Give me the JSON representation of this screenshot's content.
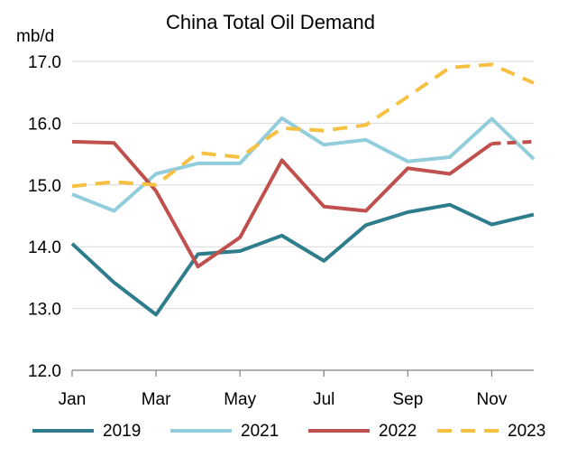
{
  "chart_data": {
    "type": "line",
    "title": "China Total Oil Demand",
    "ylabel": "mb/d",
    "xlabel": "",
    "ylim": [
      12.0,
      17.0
    ],
    "yticks": [
      "12.0",
      "13.0",
      "14.0",
      "15.0",
      "16.0",
      "17.0"
    ],
    "categories": [
      "Jan",
      "Feb",
      "Mar",
      "Apr",
      "May",
      "Jun",
      "Jul",
      "Aug",
      "Sep",
      "Oct",
      "Nov",
      "Dec"
    ],
    "xtick_labels": [
      "Jan",
      "Mar",
      "May",
      "Jul",
      "Sep",
      "Nov"
    ],
    "grid": "horizontal",
    "legend": "bottom",
    "series": [
      {
        "name": "2019",
        "color": "#2e7d8c",
        "dash": false,
        "values": [
          14.05,
          13.42,
          12.9,
          13.88,
          13.93,
          14.18,
          13.77,
          14.35,
          14.56,
          14.68,
          14.36,
          14.52
        ]
      },
      {
        "name": "2021",
        "color": "#92cddc",
        "dash": false,
        "values": [
          14.85,
          14.58,
          15.18,
          15.35,
          15.35,
          16.08,
          15.65,
          15.73,
          15.38,
          15.45,
          16.07,
          15.42
        ]
      },
      {
        "name": "2022",
        "color": "#c0504d",
        "dash": false,
        "dashed_from_index": 10,
        "values": [
          15.7,
          15.68,
          14.9,
          13.68,
          14.15,
          15.4,
          14.65,
          14.58,
          15.27,
          15.18,
          15.67,
          15.7
        ]
      },
      {
        "name": "2023",
        "color": "#f6c142",
        "dash": true,
        "values": [
          14.98,
          15.05,
          15.0,
          15.52,
          15.45,
          15.92,
          15.88,
          15.97,
          16.43,
          16.9,
          16.95,
          16.65
        ]
      }
    ]
  }
}
